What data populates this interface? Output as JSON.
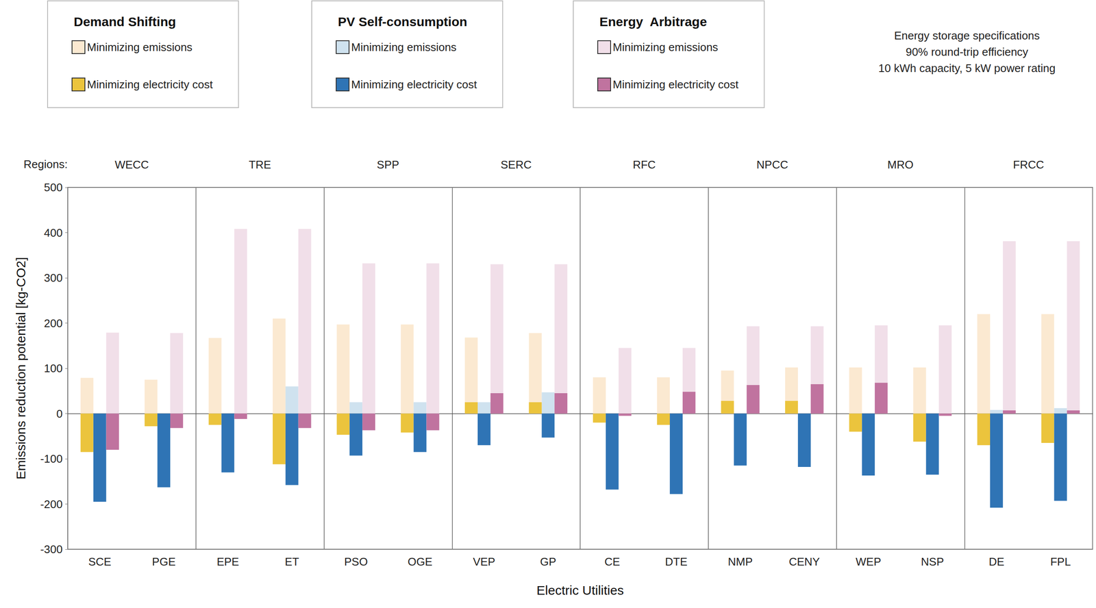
{
  "chart_data": {
    "type": "bar",
    "x_label": "Electric Utilities",
    "y_label": "Emissions reduction potential [kg-CO2]",
    "regions_label": "Regions:",
    "regions": [
      "WECC",
      "TRE",
      "SPP",
      "SERC",
      "RFC",
      "NPCC",
      "MRO",
      "FRCC"
    ],
    "annotation": [
      "Energy storage specifications",
      "90% round-trip efficiency",
      "10 kWh capacity, 5 kW power rating"
    ],
    "categories": [
      "SCE",
      "PGE",
      "EPE",
      "ET",
      "PSO",
      "OGE",
      "VEP",
      "GP",
      "CE",
      "DTE",
      "NMP",
      "CENY",
      "WEP",
      "NSP",
      "DE",
      "FPL"
    ],
    "ylim": [
      -300,
      500
    ],
    "yticks": [
      -300,
      -200,
      -100,
      0,
      100,
      200,
      300,
      400,
      500
    ],
    "grid": false,
    "legend": "top",
    "series": [
      {
        "name": "Minimizing emissions",
        "group": "Demand Shifting",
        "color": "#fbe9d1",
        "values": [
          79,
          75,
          167,
          210,
          197,
          197,
          168,
          178,
          80,
          80,
          95,
          102,
          102,
          102,
          220,
          220
        ]
      },
      {
        "name": "Minimizing electricity cost",
        "group": "Demand Shifting",
        "color": "#ebc43d",
        "values": [
          -85,
          -28,
          -25,
          -112,
          -47,
          -42,
          25,
          25,
          -20,
          -25,
          28,
          28,
          -40,
          -62,
          -70,
          -65
        ]
      },
      {
        "name": "Minimizing emissions",
        "group": "PV Self-consumption",
        "color": "#cfe2ef",
        "values": [
          0,
          0,
          0,
          60,
          25,
          25,
          25,
          47,
          0,
          0,
          0,
          0,
          0,
          0,
          8,
          12
        ]
      },
      {
        "name": "Minimizing electricity cost",
        "group": "PV Self-consumption",
        "color": "#2f74b5",
        "values": [
          -195,
          -163,
          -130,
          -158,
          -93,
          -85,
          -70,
          -53,
          -168,
          -178,
          -115,
          -118,
          -137,
          -135,
          -208,
          -193
        ]
      },
      {
        "name": "Minimizing emissions",
        "group": "Energy  Arbitrage",
        "color": "#f1dfe9",
        "values": [
          179,
          178,
          408,
          408,
          332,
          332,
          330,
          330,
          145,
          145,
          193,
          193,
          195,
          195,
          381,
          381
        ]
      },
      {
        "name": "Minimizing electricity cost",
        "group": "Energy  Arbitrage",
        "color": "#c0739f",
        "values": [
          -80,
          -32,
          -12,
          -32,
          -37,
          -37,
          45,
          45,
          -5,
          48,
          63,
          65,
          68,
          -5,
          7,
          7
        ]
      }
    ]
  }
}
